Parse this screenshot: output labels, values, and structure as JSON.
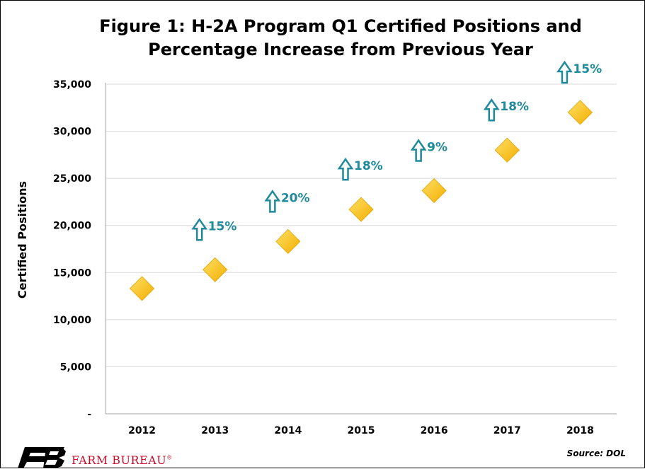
{
  "chart_data": {
    "type": "scatter",
    "title": "Figure 1: H-2A Program Q1 Certified Positions and Percentage Increase from Previous Year",
    "ylabel": "Certified Positions",
    "xlabel": "",
    "categories": [
      "2012",
      "2013",
      "2014",
      "2015",
      "2016",
      "2017",
      "2018"
    ],
    "values": [
      13300,
      15300,
      18300,
      21700,
      23700,
      28000,
      32000
    ],
    "annotations": [
      "",
      "15%",
      "20%",
      "18%",
      "9%",
      "18%",
      "15%"
    ],
    "yticks": [
      0,
      5000,
      10000,
      15000,
      20000,
      25000,
      30000,
      35000
    ],
    "ytick_labels": [
      "-",
      "5,000",
      "10,000",
      "15,000",
      "20,000",
      "25,000",
      "30,000",
      "35,000"
    ],
    "ylim": [
      0,
      35000
    ],
    "grid": true,
    "legend": false,
    "marker": "diamond",
    "colors": {
      "marker": "#f5b800",
      "marker_light": "#ffe066",
      "arrow": "#1f8a9b",
      "grid": "#d9d9d9"
    }
  },
  "source": "Source: DOL",
  "logo": {
    "name": "FB",
    "text": "FARM BUREAU",
    "mark": "®",
    "color": "#c8102e"
  }
}
